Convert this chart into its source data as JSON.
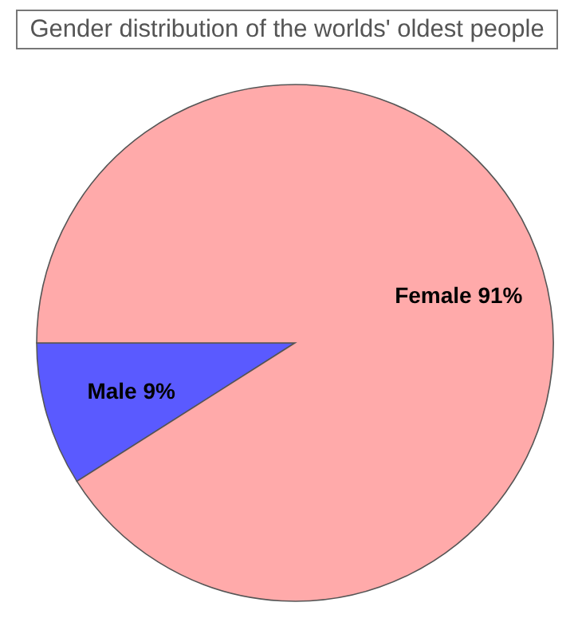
{
  "chart_data": {
    "type": "pie",
    "title": "Gender distribution of the worlds' oldest people",
    "categories": [
      "Male",
      "Female"
    ],
    "values": [
      9,
      91
    ],
    "colors": [
      "#5a5aff",
      "#ffaaaa"
    ],
    "value_labels": [
      "9%",
      "91%"
    ],
    "legend": false
  }
}
